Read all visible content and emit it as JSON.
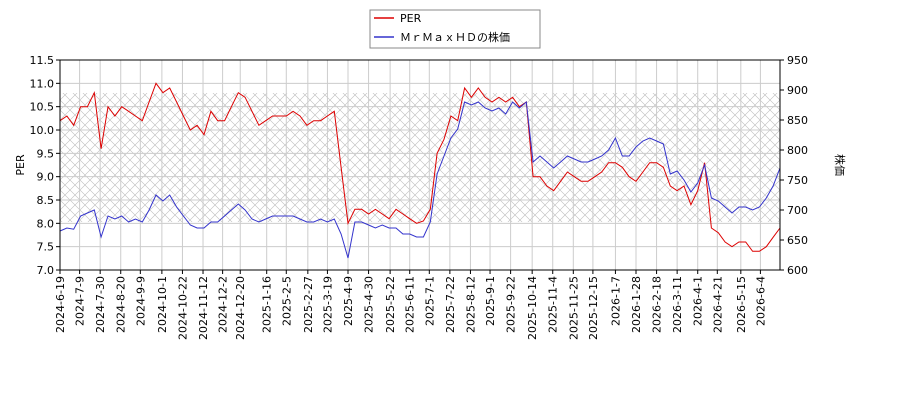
{
  "chart_data": {
    "type": "line",
    "ylabel": "PER",
    "y2label": "株価",
    "x": [
      "2024-6-19",
      "2024-6-26",
      "2024-7-3",
      "2024-7-10",
      "2024-7-17",
      "2024-7-24",
      "2024-7-31",
      "2024-8-7",
      "2024-8-14",
      "2024-8-21",
      "2024-8-28",
      "2024-9-4",
      "2024-9-11",
      "2024-9-18",
      "2024-9-25",
      "2024-10-2",
      "2024-10-9",
      "2024-10-16",
      "2024-10-23",
      "2024-10-30",
      "2024-11-6",
      "2024-11-13",
      "2024-11-20",
      "2024-11-27",
      "2024-12-4",
      "2024-12-11",
      "2024-12-18",
      "2024-12-25",
      "2025-1-1",
      "2025-1-8",
      "2025-1-15",
      "2025-1-22",
      "2025-1-29",
      "2025-2-5",
      "2025-2-12",
      "2025-2-19",
      "2025-2-26",
      "2025-3-5",
      "2025-3-12",
      "2025-3-19",
      "2025-3-26",
      "2025-4-2",
      "2025-4-9",
      "2025-4-16",
      "2025-4-23",
      "2025-4-30",
      "2025-5-7",
      "2025-5-14",
      "2025-5-21",
      "2025-5-28",
      "2025-6-4",
      "2025-6-11",
      "2025-6-18",
      "2025-6-25",
      "2025-7-2",
      "2025-7-9",
      "2025-7-16",
      "2025-7-23",
      "2025-7-30",
      "2025-8-6",
      "2025-8-13",
      "2025-8-20",
      "2025-8-27",
      "2025-9-3",
      "2025-9-10",
      "2025-9-17",
      "2025-9-24",
      "2025-10-1",
      "2025-10-8",
      "2025-10-15",
      "2025-10-22",
      "2025-10-29",
      "2025-11-5",
      "2025-11-12",
      "2025-11-19",
      "2025-11-26",
      "2025-12-3",
      "2025-12-10",
      "2025-12-17",
      "2025-12-24",
      "2025-12-31",
      "2026-1-7",
      "2026-1-14",
      "2026-1-21",
      "2026-1-28",
      "2026-2-4",
      "2026-2-11",
      "2026-2-18",
      "2026-2-25",
      "2026-3-4",
      "2026-3-11",
      "2026-3-18",
      "2026-3-25",
      "2026-4-1",
      "2026-4-8",
      "2026-4-15",
      "2026-4-22",
      "2026-4-29",
      "2026-5-6",
      "2026-5-13",
      "2026-5-20",
      "2026-5-27",
      "2026-6-3",
      "2026-6-10",
      "2026-6-17",
      "2026-6-24"
    ],
    "xlim": [
      "2024-6-19",
      "2026-6-24"
    ],
    "xticks": [
      "2024-6-19",
      "2024-7-9",
      "2024-7-30",
      "2024-8-20",
      "2024-9-9",
      "2024-10-1",
      "2024-10-22",
      "2024-11-12",
      "2024-12-2",
      "2024-12-20",
      "2025-1-16",
      "2025-2-5",
      "2025-2-27",
      "2025-3-19",
      "2025-4-9",
      "2025-4-30",
      "2025-5-22",
      "2025-6-11",
      "2025-7-1",
      "2025-7-22",
      "2025-8-12",
      "2025-9-1",
      "2025-9-22",
      "2025-10-14",
      "2025-11-4",
      "2025-11-25",
      "2025-12-15",
      "2026-1-7",
      "2026-1-28",
      "2026-2-18",
      "2026-3-11",
      "2026-4-1",
      "2026-4-21",
      "2026-5-15",
      "2026-6-4"
    ],
    "ylim": [
      7,
      11.5
    ],
    "yticks": [
      {
        "value": 7,
        "label": "7.0"
      },
      {
        "value": 7.5,
        "label": "7.5"
      },
      {
        "value": 8,
        "label": "8.0"
      },
      {
        "value": 8.5,
        "label": "8.5"
      },
      {
        "value": 9,
        "label": "9.0"
      },
      {
        "value": 9.5,
        "label": "9.5"
      },
      {
        "value": 10,
        "label": "10.0"
      },
      {
        "value": 10.5,
        "label": "10.5"
      },
      {
        "value": 11,
        "label": "11.0"
      },
      {
        "value": 11.5,
        "label": "11.5"
      }
    ],
    "y2lim": [
      600,
      950
    ],
    "y2ticks": [
      600,
      650,
      700,
      750,
      800,
      850,
      900,
      950
    ],
    "grid": true,
    "legend": "top",
    "series": [
      {
        "name": "PER",
        "color": "#dd0000",
        "values": [
          10.2,
          10.3,
          10.1,
          10.5,
          10.5,
          10.8,
          9.6,
          10.5,
          10.3,
          10.5,
          10.4,
          10.3,
          10.2,
          10.6,
          11.0,
          10.8,
          10.9,
          10.6,
          10.3,
          10.0,
          10.1,
          9.9,
          10.4,
          10.2,
          10.2,
          10.5,
          10.8,
          10.7,
          10.4,
          10.1,
          10.2,
          10.3,
          10.3,
          10.3,
          10.4,
          10.3,
          10.1,
          10.2,
          10.2,
          10.3,
          10.4,
          9.2,
          8.0,
          8.3,
          8.3,
          8.2,
          8.3,
          8.2,
          8.1,
          8.3,
          8.2,
          8.1,
          8.0,
          8.05,
          8.3,
          9.5,
          9.8,
          10.3,
          10.2,
          10.9,
          10.7,
          10.9,
          10.7,
          10.6,
          10.7,
          10.6,
          10.7,
          10.5,
          10.6,
          9.0,
          9.0,
          8.8,
          8.7,
          8.9,
          9.1,
          9.0,
          8.9,
          8.9,
          9.0,
          9.1,
          9.3,
          9.3,
          9.2,
          9.0,
          8.9,
          9.1,
          9.3,
          9.3,
          9.2,
          8.8,
          8.7,
          8.8,
          8.4,
          8.7,
          9.3,
          7.9,
          7.8,
          7.6,
          7.5,
          7.6,
          7.6,
          7.4,
          7.4,
          7.5,
          7.7,
          7.9
        ]
      },
      {
        "name": "ＭｒＭａｘＨＤの株価",
        "color": "#3333cc",
        "axis": "y2",
        "values": [
          665,
          670,
          668,
          690,
          695,
          700,
          655,
          690,
          685,
          690,
          680,
          685,
          680,
          700,
          725,
          715,
          725,
          705,
          690,
          675,
          670,
          670,
          680,
          680,
          690,
          700,
          710,
          700,
          685,
          680,
          685,
          690,
          690,
          690,
          690,
          685,
          680,
          680,
          685,
          680,
          685,
          660,
          620,
          680,
          680,
          675,
          670,
          675,
          670,
          670,
          660,
          660,
          655,
          655,
          680,
          760,
          790,
          820,
          835,
          880,
          875,
          880,
          870,
          865,
          870,
          860,
          880,
          870,
          880,
          780,
          790,
          780,
          770,
          780,
          790,
          785,
          780,
          780,
          785,
          790,
          800,
          820,
          790,
          790,
          805,
          815,
          820,
          815,
          810,
          760,
          765,
          750,
          730,
          745,
          775,
          720,
          715,
          705,
          695,
          705,
          705,
          700,
          705,
          720,
          740,
          770
        ]
      }
    ]
  }
}
